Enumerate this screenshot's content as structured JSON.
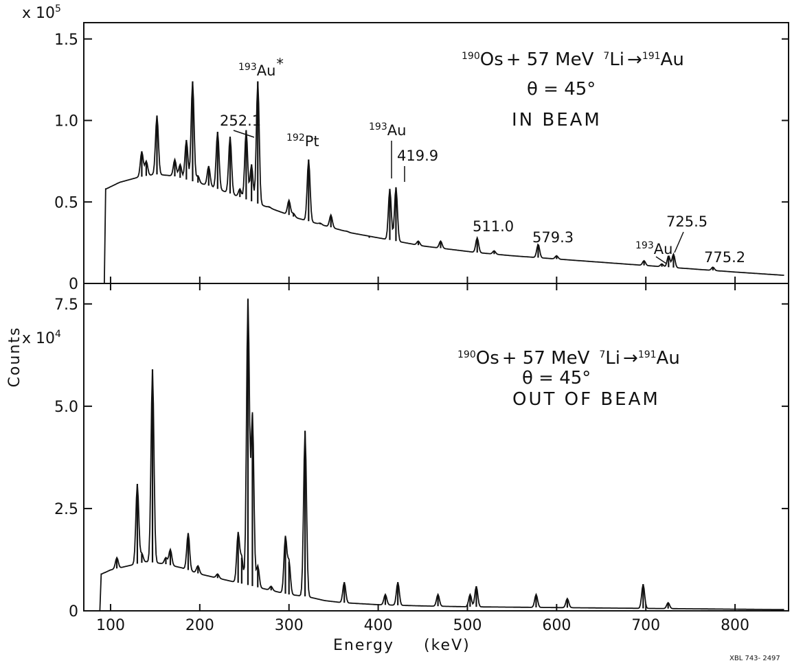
{
  "figure": {
    "xlabel_word": "Energy",
    "xlabel_unit": "(keV)",
    "ylabel": "Counts",
    "code": "XBL 743- 2497"
  },
  "chart_data": [
    {
      "type": "line",
      "panel": "top",
      "exponent_prefix": "x 10",
      "exponent": "5",
      "ylim": [
        0,
        1.6
      ],
      "xlim": [
        70,
        860
      ],
      "grid": false,
      "y_ticks": [
        0,
        0.5,
        1.0,
        1.5
      ],
      "y_tick_labels": [
        "0",
        "0.5",
        "1.0",
        "1.5"
      ],
      "reaction": {
        "a_sup": "190",
        "a_sym": "Os",
        "plus": "+ 57 MeV",
        "b_sup": "7",
        "b_sym": "Li",
        "c_sup": "191",
        "c_sym": "Au"
      },
      "angle": "θ = 45°",
      "condition": "IN BEAM",
      "annotations": [
        {
          "x": 265,
          "sup": "193",
          "sym": "Au",
          "mark": "*"
        },
        {
          "x": 252.1,
          "text": "252.1"
        },
        {
          "x": 322,
          "sup": "192",
          "sym": "Pt"
        },
        {
          "x": 413,
          "sup": "193",
          "sym": "Au"
        },
        {
          "x": 419.9,
          "text": "419.9"
        },
        {
          "x": 511.0,
          "text": "511.0"
        },
        {
          "x": 579.3,
          "text": "579.3"
        },
        {
          "x": 718,
          "sup": "193",
          "sym": "Au"
        },
        {
          "x": 725.5,
          "text": "725.5"
        },
        {
          "x": 775.2,
          "text": "775.2"
        }
      ],
      "background": [
        [
          93,
          0
        ],
        [
          95,
          0.58
        ],
        [
          110,
          0.62
        ],
        [
          130,
          0.65
        ],
        [
          150,
          0.67
        ],
        [
          170,
          0.66
        ],
        [
          190,
          0.63
        ],
        [
          210,
          0.6
        ],
        [
          230,
          0.56
        ],
        [
          250,
          0.52
        ],
        [
          270,
          0.48
        ],
        [
          290,
          0.44
        ],
        [
          310,
          0.4
        ],
        [
          330,
          0.37
        ],
        [
          350,
          0.34
        ],
        [
          370,
          0.31
        ],
        [
          390,
          0.29
        ],
        [
          410,
          0.27
        ],
        [
          430,
          0.25
        ],
        [
          450,
          0.23
        ],
        [
          480,
          0.21
        ],
        [
          510,
          0.19
        ],
        [
          550,
          0.17
        ],
        [
          600,
          0.15
        ],
        [
          650,
          0.13
        ],
        [
          700,
          0.11
        ],
        [
          750,
          0.09
        ],
        [
          800,
          0.07
        ],
        [
          855,
          0.05
        ]
      ],
      "peaks": [
        {
          "x": 135,
          "y": 0.81
        },
        {
          "x": 140,
          "y": 0.75
        },
        {
          "x": 152,
          "y": 1.03
        },
        {
          "x": 172,
          "y": 0.76
        },
        {
          "x": 178,
          "y": 0.73
        },
        {
          "x": 185,
          "y": 0.88
        },
        {
          "x": 192,
          "y": 1.24
        },
        {
          "x": 198,
          "y": 0.66
        },
        {
          "x": 210,
          "y": 0.72
        },
        {
          "x": 220,
          "y": 0.93
        },
        {
          "x": 234,
          "y": 0.9
        },
        {
          "x": 245,
          "y": 0.58
        },
        {
          "x": 252,
          "y": 0.94
        },
        {
          "x": 258,
          "y": 0.73
        },
        {
          "x": 265,
          "y": 1.24
        },
        {
          "x": 278,
          "y": 0.47
        },
        {
          "x": 300,
          "y": 0.51
        },
        {
          "x": 305,
          "y": 0.43
        },
        {
          "x": 322,
          "y": 0.76
        },
        {
          "x": 335,
          "y": 0.37
        },
        {
          "x": 347,
          "y": 0.42
        },
        {
          "x": 365,
          "y": 0.32
        },
        {
          "x": 390,
          "y": 0.28
        },
        {
          "x": 413,
          "y": 0.58
        },
        {
          "x": 419.9,
          "y": 0.59
        },
        {
          "x": 445,
          "y": 0.26
        },
        {
          "x": 470,
          "y": 0.26
        },
        {
          "x": 511,
          "y": 0.28
        },
        {
          "x": 530,
          "y": 0.2
        },
        {
          "x": 579.3,
          "y": 0.24
        },
        {
          "x": 600,
          "y": 0.17
        },
        {
          "x": 698,
          "y": 0.14
        },
        {
          "x": 718,
          "y": 0.12
        },
        {
          "x": 725.5,
          "y": 0.17
        },
        {
          "x": 731,
          "y": 0.18
        },
        {
          "x": 775.2,
          "y": 0.1
        }
      ]
    },
    {
      "type": "line",
      "panel": "bottom",
      "exponent_prefix": "x 10",
      "exponent": "4",
      "ylim": [
        0,
        8.0
      ],
      "xlim": [
        70,
        860
      ],
      "grid": false,
      "y_ticks": [
        0,
        2.5,
        5.0,
        7.5
      ],
      "y_tick_labels": [
        "0",
        "2.5",
        "5.0",
        "7.5"
      ],
      "x_ticks": [
        100,
        200,
        300,
        400,
        500,
        600,
        700,
        800
      ],
      "x_tick_labels": [
        "100",
        "200",
        "300",
        "400",
        "500",
        "600",
        "700",
        "800"
      ],
      "reaction": {
        "a_sup": "190",
        "a_sym": "Os",
        "plus": "+ 57 MeV",
        "b_sup": "7",
        "b_sym": "Li",
        "c_sup": "191",
        "c_sym": "Au"
      },
      "angle": "θ = 45°",
      "condition": "OUT OF BEAM",
      "background": [
        [
          88,
          0
        ],
        [
          90,
          0.9
        ],
        [
          100,
          1.0
        ],
        [
          120,
          1.1
        ],
        [
          140,
          1.2
        ],
        [
          160,
          1.15
        ],
        [
          180,
          1.05
        ],
        [
          200,
          0.9
        ],
        [
          220,
          0.8
        ],
        [
          240,
          0.7
        ],
        [
          260,
          0.6
        ],
        [
          280,
          0.5
        ],
        [
          300,
          0.4
        ],
        [
          320,
          0.35
        ],
        [
          340,
          0.25
        ],
        [
          360,
          0.2
        ],
        [
          400,
          0.15
        ],
        [
          450,
          0.12
        ],
        [
          500,
          0.1
        ],
        [
          600,
          0.08
        ],
        [
          700,
          0.06
        ],
        [
          800,
          0.04
        ],
        [
          855,
          0.03
        ]
      ],
      "peaks": [
        {
          "x": 107,
          "y": 1.3
        },
        {
          "x": 130,
          "y": 3.1
        },
        {
          "x": 135,
          "y": 1.4
        },
        {
          "x": 147,
          "y": 5.9
        },
        {
          "x": 162,
          "y": 1.3
        },
        {
          "x": 167,
          "y": 1.5
        },
        {
          "x": 187,
          "y": 1.9
        },
        {
          "x": 198,
          "y": 1.1
        },
        {
          "x": 220,
          "y": 0.9
        },
        {
          "x": 243,
          "y": 1.9
        },
        {
          "x": 247,
          "y": 1.3
        },
        {
          "x": 254,
          "y": 7.6
        },
        {
          "x": 259,
          "y": 4.8
        },
        {
          "x": 265,
          "y": 1.1
        },
        {
          "x": 280,
          "y": 0.6
        },
        {
          "x": 296,
          "y": 1.8
        },
        {
          "x": 300,
          "y": 1.2
        },
        {
          "x": 318,
          "y": 4.4
        },
        {
          "x": 362,
          "y": 0.7
        },
        {
          "x": 408,
          "y": 0.4
        },
        {
          "x": 422,
          "y": 0.7
        },
        {
          "x": 467,
          "y": 0.4
        },
        {
          "x": 503,
          "y": 0.4
        },
        {
          "x": 510,
          "y": 0.6
        },
        {
          "x": 577,
          "y": 0.4
        },
        {
          "x": 612,
          "y": 0.3
        },
        {
          "x": 697,
          "y": 0.65
        },
        {
          "x": 725,
          "y": 0.2
        }
      ]
    }
  ]
}
